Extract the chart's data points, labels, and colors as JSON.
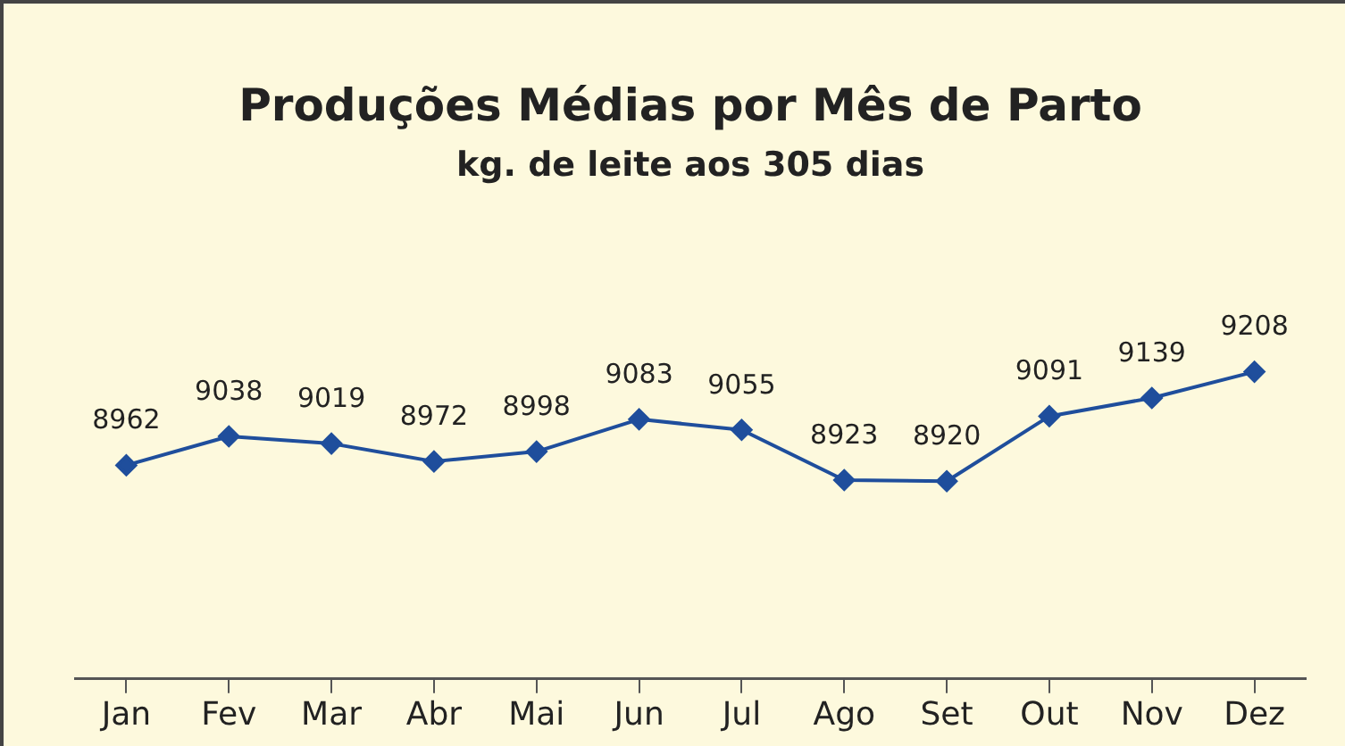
{
  "chart_data": {
    "type": "line",
    "title": "Produções Médias por Mês de Parto",
    "subtitle": "kg. de leite aos 305 dias",
    "categories": [
      "Jan",
      "Fev",
      "Mar",
      "Abr",
      "Mai",
      "Jun",
      "Jul",
      "Ago",
      "Set",
      "Out",
      "Nov",
      "Dez"
    ],
    "series": [
      {
        "color": "#1f4e9c",
        "values": [
          8962,
          9038,
          9019,
          8972,
          8998,
          9083,
          9055,
          8923,
          8920,
          9091,
          9139,
          9208
        ]
      }
    ],
    "data_labels": true,
    "marker": "diamond",
    "line_style": "solid",
    "legend": false,
    "tick_labels": "x"
  }
}
